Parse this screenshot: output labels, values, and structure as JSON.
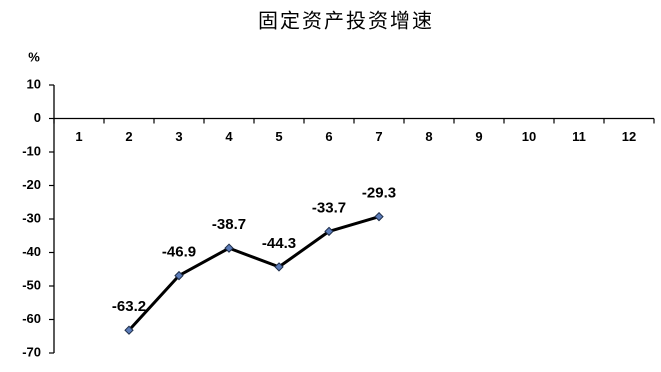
{
  "chart_data": {
    "type": "line",
    "title": "固定资产投资增速",
    "ylabel": "%",
    "categories": [
      "1",
      "2",
      "3",
      "4",
      "5",
      "6",
      "7",
      "8",
      "9",
      "10",
      "11",
      "12"
    ],
    "series": [
      {
        "values": [
          null,
          -63.2,
          -46.9,
          -38.7,
          -44.3,
          -33.7,
          -29.3,
          null,
          null,
          null,
          null,
          null
        ]
      }
    ],
    "yticks": [
      10,
      0,
      -10,
      -20,
      -30,
      -40,
      -50,
      -60,
      -70
    ],
    "ylim": [
      -70,
      10
    ],
    "grid": false,
    "show_legend": false,
    "data_labels": true,
    "line_color": "#000000",
    "marker_color": "#5b7bb8",
    "marker_edge_color": "#1f2f4a"
  }
}
